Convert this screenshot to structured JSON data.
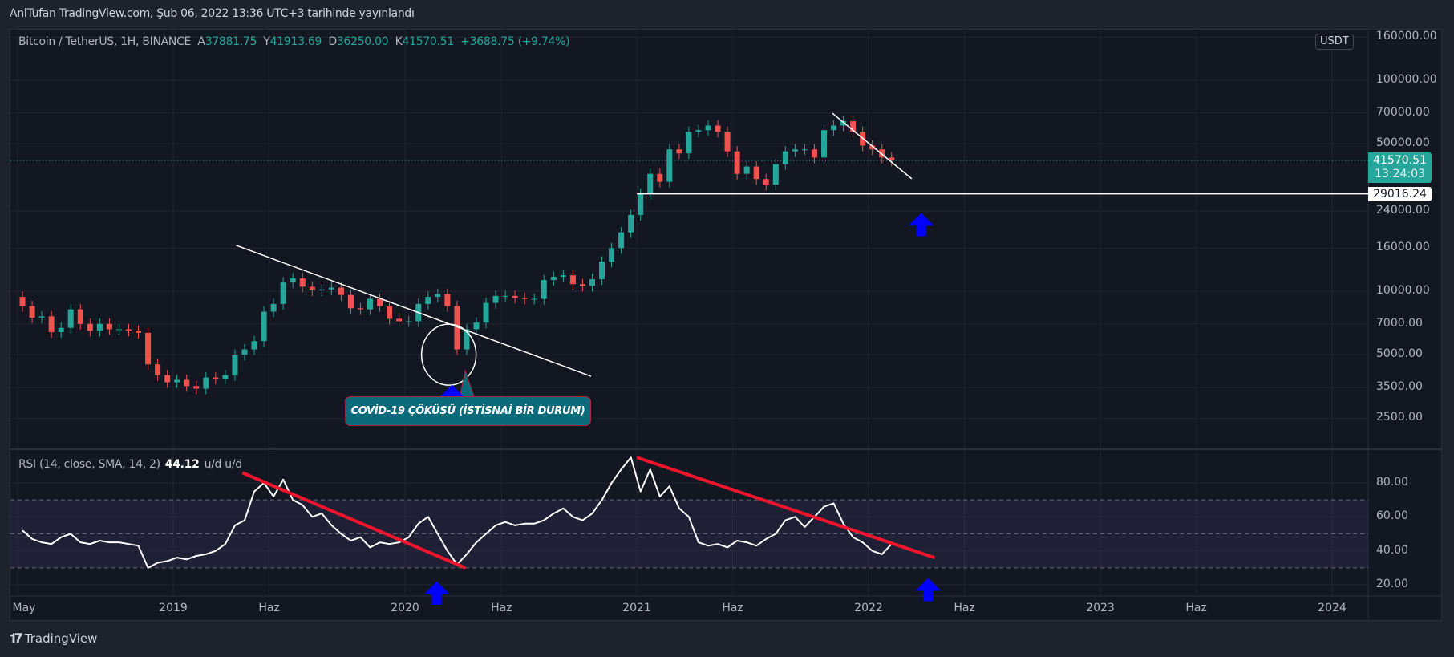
{
  "header": {
    "published_line": "AnlTufan TradingView.com, Şub 06, 2022 13:36 UTC+3 tarihinde yayınlandı"
  },
  "legend": {
    "symbol": "Bitcoin / TetherUS, 1H, BINANCE",
    "open_label": "A",
    "open": "37881.75",
    "high_label": "Y",
    "high": "41913.69",
    "low_label": "D",
    "low": "36250.00",
    "close_label": "K",
    "close": "41570.51",
    "change": "+3688.75 (+9.74%)"
  },
  "rsi_legend": {
    "label": "RSI (14, close, SMA, 14, 2)",
    "value": "44.12",
    "extra": "u/d  u/d"
  },
  "currency_badge": "USDT",
  "last_price": {
    "price": "41570.51",
    "countdown": "13:24:03"
  },
  "horizontal_line_label": "29016.24",
  "callout": {
    "text": "COVİD-19 ÇÖKÜŞÜ (İSTİSNAİ BİR DURUM)"
  },
  "footer": {
    "brand": "TradingView",
    "logo": "17"
  },
  "colors": {
    "up": "#26a69a",
    "down": "#ef5350",
    "background": "#131722",
    "rsi_line": "#ffffff",
    "trend_red": "#f0142d",
    "arrow": "#0000ff",
    "callout": "#0b6b7a"
  },
  "chart_data": {
    "type": "candlestick",
    "price_scale": "log",
    "ylim": [
      2200,
      175000
    ],
    "price_ticks": [
      "160000.00",
      "100000.00",
      "70000.00",
      "50000.00",
      "24000.00",
      "16000.00",
      "10000.00",
      "7000.00",
      "5000.00",
      "3500.00",
      "2500.00"
    ],
    "time_ticks": [
      {
        "label": "May",
        "date": "2018-05-01"
      },
      {
        "label": "2019",
        "date": "2019-01-01"
      },
      {
        "label": "Haz",
        "date": "2019-06-01"
      },
      {
        "label": "2020",
        "date": "2020-01-01"
      },
      {
        "label": "Haz",
        "date": "2020-06-01"
      },
      {
        "label": "2021",
        "date": "2021-01-01"
      },
      {
        "label": "Haz",
        "date": "2021-06-01"
      },
      {
        "label": "2022",
        "date": "2022-01-01"
      },
      {
        "label": "Haz",
        "date": "2022-06-01"
      },
      {
        "label": "2023",
        "date": "2023-01-01"
      },
      {
        "label": "Haz",
        "date": "2023-06-01"
      },
      {
        "label": "2024",
        "date": "2024-01-01"
      }
    ],
    "first_open": 9400,
    "dates_start": "2018-05-01",
    "interval": "half-month",
    "closes": [
      8500,
      7500,
      7600,
      6400,
      6700,
      8200,
      7000,
      6500,
      7000,
      6600,
      6600,
      6500,
      6350,
      4500,
      4000,
      3700,
      3800,
      3550,
      3450,
      3900,
      3850,
      4000,
      5000,
      5300,
      5800,
      8000,
      8700,
      11000,
      11500,
      10500,
      10100,
      10200,
      10400,
      9600,
      8300,
      8200,
      9200,
      8500,
      7400,
      7200,
      7200,
      8700,
      9400,
      9700,
      8500,
      5300,
      6600,
      7100,
      8800,
      9500,
      9500,
      9300,
      9200,
      9200,
      11300,
      11700,
      11900,
      10800,
      10600,
      11400,
      13800,
      16000,
      19000,
      23000,
      29000,
      36000,
      33000,
      47000,
      45000,
      57000,
      58000,
      61000,
      57000,
      46000,
      36000,
      39000,
      34000,
      32000,
      40000,
      46000,
      47000,
      47000,
      43000,
      58000,
      61000,
      64000,
      57000,
      49000,
      47000,
      43000,
      41570.51
    ],
    "rsi": {
      "ticks": [
        "80.00",
        "60.00",
        "40.00",
        "20.00"
      ],
      "ylim": [
        15,
        100
      ],
      "bands": [
        30,
        50,
        70
      ],
      "values": [
        52,
        47,
        45,
        44,
        48,
        50,
        45,
        44,
        46,
        45,
        45,
        44,
        43,
        30,
        33,
        34,
        36,
        35,
        37,
        38,
        40,
        44,
        55,
        58,
        75,
        80,
        72,
        82,
        70,
        67,
        60,
        62,
        55,
        50,
        46,
        48,
        42,
        45,
        44,
        45,
        48,
        56,
        60,
        50,
        40,
        32,
        38,
        45,
        50,
        55,
        57,
        55,
        56,
        56,
        58,
        62,
        65,
        60,
        58,
        62,
        70,
        80,
        88,
        95,
        75,
        88,
        72,
        78,
        65,
        60,
        45,
        43,
        44,
        42,
        46,
        45,
        43,
        47,
        50,
        58,
        60,
        54,
        60,
        66,
        68,
        56,
        48,
        45,
        40,
        38,
        44.12
      ]
    },
    "drawings": {
      "price_trendlines": [
        {
          "from": [
            "2019-04-10",
            16500
          ],
          "to": [
            "2020-10-20",
            3950
          ],
          "color": "#ffffff"
        },
        {
          "from": [
            "2021-11-05",
            69800
          ],
          "to": [
            "2022-03-10",
            34100
          ],
          "color": "#ffffff"
        }
      ],
      "horizontal_line": {
        "from_date": "2021-01-01",
        "price": 29016.24
      },
      "circle": {
        "date": "2020-03-10",
        "price": 5000
      },
      "price_arrows": [
        [
          "2020-03-15",
          3600
        ],
        [
          "2022-03-25",
          23500
        ]
      ],
      "rsi_trendlines": [
        {
          "from": [
            "2019-04-20",
            86
          ],
          "to": [
            "2020-04-05",
            30
          ]
        },
        {
          "from": [
            "2021-01-01",
            95
          ],
          "to": [
            "2022-04-15",
            36
          ]
        }
      ],
      "rsi_arrows": [
        [
          "2020-02-20",
          22
        ],
        [
          "2022-04-05",
          24
        ]
      ]
    }
  }
}
